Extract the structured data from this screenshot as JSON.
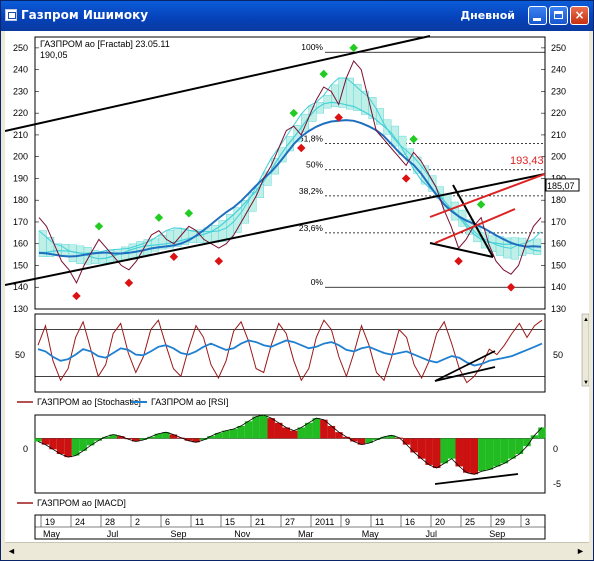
{
  "window": {
    "title": "Газпром Ишимоку",
    "period": "Дневной",
    "min_glyph": "",
    "max_glyph": "",
    "close_glyph": "×"
  },
  "colors": {
    "price_series": "#7b1030",
    "ichimoku_cloud": "#44d0d8",
    "moving_average": "#1f6fc0",
    "fractal_up": "#22cc22",
    "fractal_down": "#dd1111",
    "stochastic": "#9b1818",
    "rsi": "#1f7fd0",
    "macd_up": "#22bb22",
    "macd_down": "#cc1111",
    "trendline": "#000000",
    "red_lines": "#dd2222"
  },
  "main_panel": {
    "legend_line1": "ГАЗПРОМ ао [Fractab] 23.05.11",
    "legend_line2": "190,05",
    "fib_labels": [
      "100%",
      "61,8%",
      "50%",
      "38,2%",
      "23,6%",
      "0%"
    ],
    "price_label": "193,43",
    "last_label": "185,07"
  },
  "osc_panel": {
    "legend_stoch": "ГАЗПРОМ ао [Stochastic]",
    "legend_rsi": "ГАЗПРОМ ао [RSI]",
    "tick_left": "50",
    "tick_right": "50"
  },
  "macd_panel": {
    "legend": "ГАЗПРОМ ао [MACD]",
    "ticks": [
      "0",
      "-5"
    ]
  },
  "chart_data": [
    {
      "type": "line",
      "title": "ГАЗПРОМ ао [Fractab] 23.05.11",
      "y_ticks": [
        130,
        140,
        150,
        160,
        170,
        180,
        190,
        200,
        210,
        220,
        230,
        240,
        250
      ],
      "ylim": [
        130,
        255
      ],
      "x_day_labels": [
        "19",
        "24",
        "28",
        "2",
        "6",
        "11",
        "15",
        "21",
        "27",
        "2011",
        "9",
        "11",
        "16",
        "20",
        "25",
        "29",
        "3"
      ],
      "x_month_labels": [
        "May",
        "Jul",
        "Sep",
        "Nov",
        "Mar",
        "May",
        "Jul",
        "Sep"
      ],
      "series": [
        {
          "name": "ГАЗПРОМ ао",
          "values": [
            172,
            168,
            160,
            152,
            148,
            142,
            150,
            156,
            162,
            158,
            154,
            150,
            148,
            152,
            158,
            164,
            166,
            162,
            160,
            164,
            168,
            166,
            162,
            160,
            158,
            160,
            164,
            170,
            176,
            182,
            190,
            196,
            204,
            212,
            214,
            210,
            218,
            226,
            232,
            230,
            224,
            236,
            244,
            240,
            226,
            212,
            208,
            204,
            200,
            196,
            202,
            198,
            192,
            186,
            176,
            168,
            158,
            162,
            168,
            172,
            160,
            152,
            148,
            146,
            150,
            160,
            168,
            172
          ]
        }
      ],
      "fibonacci_levels": [
        {
          "label": "100%",
          "value": 248
        },
        {
          "label": "61,8%",
          "value": 206
        },
        {
          "label": "50%",
          "value": 194
        },
        {
          "label": "38,2%",
          "value": 182
        },
        {
          "label": "23,6%",
          "value": 165
        },
        {
          "label": "0%",
          "value": 140
        }
      ],
      "annotations": [
        "193,43",
        "185,07"
      ]
    },
    {
      "type": "line",
      "title": "",
      "y_ticks": [
        50
      ],
      "ylim": [
        0,
        100
      ],
      "series": [
        {
          "name": "ГАЗПРОМ ао [Stochastic]",
          "values": [
            60,
            85,
            40,
            15,
            30,
            70,
            90,
            55,
            20,
            35,
            75,
            88,
            50,
            25,
            45,
            80,
            92,
            60,
            30,
            20,
            55,
            85,
            70,
            35,
            18,
            40,
            78,
            90,
            65,
            30,
            25,
            60,
            88,
            75,
            40,
            15,
            30,
            70,
            92,
            80,
            45,
            20,
            50,
            85,
            60,
            25,
            15,
            45,
            80,
            70,
            35,
            18,
            40,
            75,
            90,
            62,
            30,
            12,
            20,
            35,
            55,
            48,
            60,
            75,
            88,
            70,
            85,
            92
          ]
        },
        {
          "name": "ГАЗПРОМ ао [RSI]",
          "values": [
            55,
            52,
            45,
            40,
            42,
            48,
            55,
            52,
            46,
            44,
            50,
            56,
            54,
            48,
            47,
            52,
            58,
            60,
            56,
            50,
            48,
            52,
            58,
            62,
            58,
            54,
            56,
            62,
            66,
            64,
            60,
            58,
            62,
            66,
            64,
            60,
            56,
            58,
            62,
            64,
            60,
            54,
            52,
            56,
            58,
            54,
            50,
            48,
            50,
            52,
            48,
            44,
            40,
            38,
            42,
            46,
            44,
            38,
            34,
            36,
            40,
            42,
            44,
            46,
            50,
            54,
            58,
            62
          ]
        }
      ]
    },
    {
      "type": "bar",
      "title": "",
      "y_ticks": [
        0,
        -5
      ],
      "ylim": [
        -7,
        3
      ],
      "series": [
        {
          "name": "ГАЗПРОМ ао [MACD]",
          "values": [
            -0.4,
            -0.8,
            -1.4,
            -2.0,
            -2.4,
            -2.2,
            -1.6,
            -0.9,
            -0.3,
            0.2,
            0.5,
            0.3,
            -0.1,
            -0.4,
            -0.2,
            0.2,
            0.6,
            0.8,
            0.5,
            0.1,
            -0.3,
            -0.5,
            -0.2,
            0.3,
            0.7,
            1.0,
            1.2,
            1.6,
            2.2,
            2.8,
            3.0,
            2.6,
            2.0,
            1.4,
            1.0,
            1.4,
            2.0,
            2.6,
            2.4,
            1.6,
            0.8,
            0.2,
            -0.4,
            -0.8,
            -0.6,
            -0.2,
            0.2,
            0.4,
            0.1,
            -0.8,
            -1.8,
            -2.6,
            -3.4,
            -3.8,
            -3.2,
            -2.6,
            -3.6,
            -4.4,
            -4.6,
            -4.2,
            -4.0,
            -3.6,
            -3.2,
            -2.6,
            -2.0,
            -1.0,
            0.4,
            1.4
          ]
        }
      ]
    }
  ]
}
